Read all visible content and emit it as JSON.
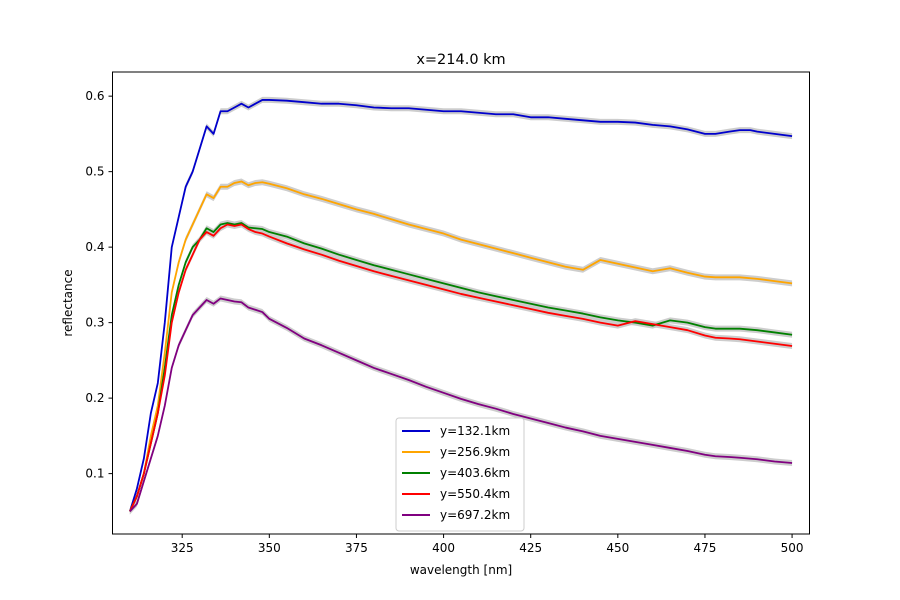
{
  "chart_data": {
    "type": "line",
    "title": "x=214.0 km",
    "xlabel": "wavelength [nm]",
    "ylabel": "reflectance",
    "xlim": [
      305,
      505
    ],
    "ylim": [
      0.02,
      0.632
    ],
    "xticks": [
      325,
      350,
      375,
      400,
      425,
      450,
      475,
      500
    ],
    "yticks": [
      0.1,
      0.2,
      0.3,
      0.4,
      0.5,
      0.6
    ],
    "band_color": "#c8c8c8",
    "legend_position": "lower center",
    "series": [
      {
        "name": "y=132.1km",
        "color": "#0000cc",
        "x": [
          310,
          312,
          314,
          316,
          318,
          320,
          322,
          324,
          326,
          328,
          330,
          332,
          334,
          336,
          338,
          340,
          342,
          344,
          346,
          348,
          350,
          355,
          360,
          365,
          370,
          375,
          380,
          385,
          390,
          395,
          400,
          405,
          410,
          415,
          420,
          425,
          430,
          435,
          440,
          445,
          450,
          455,
          460,
          465,
          470,
          475,
          478,
          482,
          485,
          488,
          490,
          495,
          500
        ],
        "y": [
          0.05,
          0.08,
          0.12,
          0.18,
          0.22,
          0.3,
          0.4,
          0.44,
          0.48,
          0.5,
          0.53,
          0.56,
          0.55,
          0.58,
          0.58,
          0.585,
          0.59,
          0.585,
          0.59,
          0.595,
          0.595,
          0.594,
          0.592,
          0.59,
          0.59,
          0.588,
          0.585,
          0.584,
          0.584,
          0.582,
          0.58,
          0.58,
          0.578,
          0.576,
          0.576,
          0.572,
          0.572,
          0.57,
          0.568,
          0.566,
          0.566,
          0.565,
          0.562,
          0.56,
          0.556,
          0.55,
          0.55,
          0.553,
          0.555,
          0.555,
          0.553,
          0.55,
          0.547
        ]
      },
      {
        "name": "y=256.9km",
        "color": "#ffa500",
        "x": [
          310,
          312,
          314,
          316,
          318,
          320,
          322,
          324,
          326,
          328,
          330,
          332,
          334,
          336,
          338,
          340,
          342,
          344,
          346,
          348,
          350,
          355,
          360,
          365,
          370,
          375,
          380,
          385,
          390,
          395,
          400,
          405,
          410,
          415,
          420,
          425,
          430,
          435,
          440,
          445,
          450,
          455,
          460,
          465,
          470,
          475,
          478,
          482,
          485,
          490,
          495,
          500
        ],
        "y": [
          0.05,
          0.07,
          0.1,
          0.15,
          0.19,
          0.26,
          0.34,
          0.38,
          0.41,
          0.43,
          0.45,
          0.47,
          0.465,
          0.48,
          0.48,
          0.485,
          0.487,
          0.482,
          0.485,
          0.486,
          0.484,
          0.478,
          0.47,
          0.464,
          0.457,
          0.45,
          0.444,
          0.437,
          0.43,
          0.424,
          0.418,
          0.41,
          0.404,
          0.398,
          0.392,
          0.386,
          0.38,
          0.374,
          0.37,
          0.383,
          0.378,
          0.373,
          0.368,
          0.372,
          0.366,
          0.361,
          0.36,
          0.36,
          0.36,
          0.358,
          0.355,
          0.352
        ]
      },
      {
        "name": "y=403.6km",
        "color": "#008000",
        "x": [
          310,
          312,
          314,
          316,
          318,
          320,
          322,
          324,
          326,
          328,
          330,
          332,
          334,
          336,
          338,
          340,
          342,
          344,
          346,
          348,
          350,
          355,
          360,
          365,
          370,
          375,
          380,
          385,
          390,
          395,
          400,
          405,
          410,
          415,
          420,
          425,
          430,
          435,
          440,
          445,
          450,
          455,
          460,
          465,
          470,
          475,
          478,
          482,
          485,
          490,
          495,
          500
        ],
        "y": [
          0.05,
          0.07,
          0.1,
          0.14,
          0.18,
          0.24,
          0.31,
          0.35,
          0.38,
          0.4,
          0.41,
          0.425,
          0.42,
          0.43,
          0.432,
          0.43,
          0.432,
          0.426,
          0.425,
          0.424,
          0.42,
          0.414,
          0.405,
          0.398,
          0.39,
          0.383,
          0.376,
          0.37,
          0.364,
          0.358,
          0.352,
          0.346,
          0.34,
          0.335,
          0.33,
          0.325,
          0.32,
          0.316,
          0.312,
          0.307,
          0.303,
          0.3,
          0.296,
          0.303,
          0.3,
          0.294,
          0.292,
          0.292,
          0.292,
          0.29,
          0.287,
          0.284
        ]
      },
      {
        "name": "y=550.4km",
        "color": "#ff0000",
        "x": [
          310,
          312,
          314,
          316,
          318,
          320,
          322,
          324,
          326,
          328,
          330,
          332,
          334,
          336,
          338,
          340,
          342,
          344,
          346,
          348,
          350,
          355,
          360,
          365,
          370,
          375,
          380,
          385,
          390,
          395,
          400,
          405,
          410,
          415,
          420,
          425,
          430,
          435,
          440,
          445,
          450,
          455,
          460,
          465,
          470,
          475,
          478,
          482,
          485,
          490,
          495,
          500
        ],
        "y": [
          0.05,
          0.07,
          0.1,
          0.14,
          0.18,
          0.23,
          0.3,
          0.34,
          0.37,
          0.39,
          0.41,
          0.42,
          0.415,
          0.425,
          0.43,
          0.428,
          0.43,
          0.424,
          0.42,
          0.418,
          0.414,
          0.405,
          0.397,
          0.39,
          0.382,
          0.375,
          0.368,
          0.362,
          0.356,
          0.35,
          0.344,
          0.338,
          0.333,
          0.328,
          0.323,
          0.318,
          0.313,
          0.309,
          0.305,
          0.3,
          0.296,
          0.302,
          0.298,
          0.294,
          0.29,
          0.283,
          0.28,
          0.279,
          0.278,
          0.275,
          0.272,
          0.269
        ]
      },
      {
        "name": "y=697.2km",
        "color": "#800080",
        "x": [
          310,
          312,
          314,
          316,
          318,
          320,
          322,
          324,
          326,
          328,
          330,
          332,
          334,
          336,
          338,
          340,
          342,
          344,
          346,
          348,
          350,
          355,
          360,
          365,
          370,
          375,
          380,
          385,
          390,
          395,
          400,
          405,
          410,
          415,
          420,
          425,
          430,
          435,
          440,
          445,
          450,
          455,
          460,
          465,
          470,
          475,
          478,
          482,
          485,
          490,
          495,
          500
        ],
        "y": [
          0.05,
          0.06,
          0.09,
          0.12,
          0.15,
          0.19,
          0.24,
          0.27,
          0.29,
          0.31,
          0.32,
          0.33,
          0.325,
          0.332,
          0.33,
          0.328,
          0.327,
          0.32,
          0.317,
          0.314,
          0.305,
          0.293,
          0.279,
          0.27,
          0.26,
          0.25,
          0.24,
          0.232,
          0.224,
          0.215,
          0.207,
          0.199,
          0.192,
          0.186,
          0.179,
          0.173,
          0.167,
          0.161,
          0.156,
          0.15,
          0.146,
          0.142,
          0.138,
          0.134,
          0.13,
          0.125,
          0.123,
          0.122,
          0.121,
          0.119,
          0.116,
          0.114
        ]
      }
    ]
  }
}
